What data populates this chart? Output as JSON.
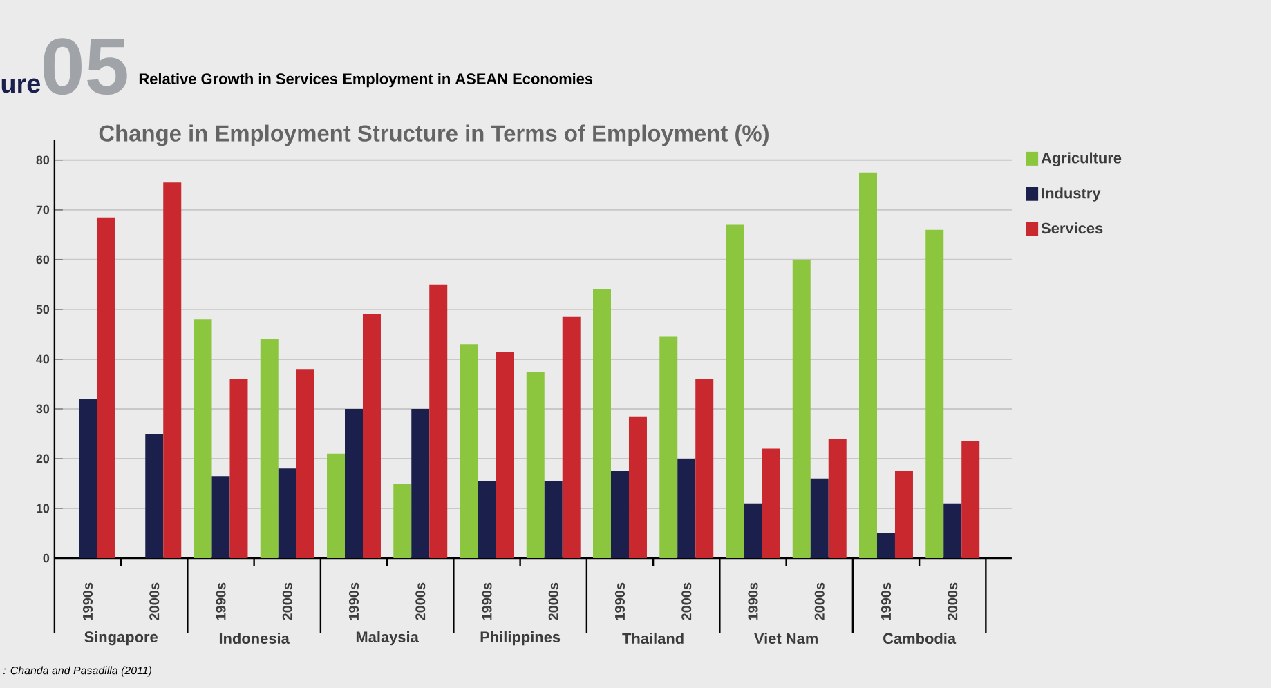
{
  "chart_data": {
    "type": "bar",
    "title": "Relative Growth in Services Employment in ASEAN Economies",
    "subtitle": "Change in Employment Structure in Terms of Employment (%)",
    "categories": [
      "1990s",
      "2000s",
      "1990s",
      "2000s",
      "1990s",
      "2000s",
      "1990s",
      "2000s",
      "1990s",
      "2000s",
      "1990s",
      "2000s",
      "1990s",
      "2000s"
    ],
    "series": [
      {
        "name": "Agriculture",
        "color": "#8cc63f",
        "values": [
          0,
          0,
          48,
          44,
          21,
          15,
          43,
          37.5,
          54,
          44.5,
          67,
          60,
          77.5,
          66
        ]
      },
      {
        "name": "Industry",
        "color": "#1b1f4b",
        "values": [
          32,
          25,
          16.5,
          18,
          30,
          30,
          15.5,
          15.5,
          17.5,
          20,
          11,
          16,
          5,
          11
        ]
      },
      {
        "name": "Services",
        "color": "#c8282e",
        "values": [
          68.5,
          75.5,
          36,
          38,
          49,
          55,
          41.5,
          48.5,
          28.5,
          36,
          22,
          24,
          17.5,
          23.5
        ]
      }
    ],
    "ylim": [
      0,
      84
    ],
    "yticks": [
      0,
      10,
      20,
      30,
      40,
      50,
      60,
      70,
      80
    ],
    "grid": "y",
    "legend": "top right",
    "annotations": [
      "Singapore",
      "Indonesia",
      "Malaysia",
      "Philippines",
      "Thailand",
      "Viet Nam",
      "Cambodia",
      "ure",
      "05",
      ": Chanda and Pasadilla (2011)"
    ]
  }
}
